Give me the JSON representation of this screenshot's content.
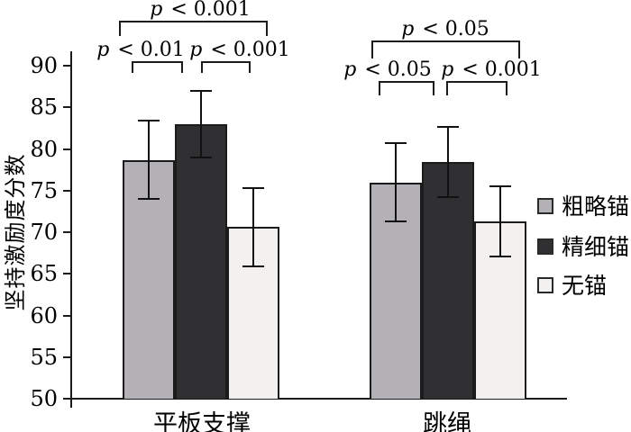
{
  "chart_data": {
    "type": "bar",
    "title": "",
    "xlabel": "",
    "ylabel": "坚持激励度分数",
    "ylim": [
      50,
      90
    ],
    "yticks": [
      50,
      55,
      60,
      65,
      70,
      75,
      80,
      85,
      90
    ],
    "grid": false,
    "legend_position": "right",
    "categories": [
      "平板支撑",
      "跳绳"
    ],
    "series": [
      {
        "name": "粗略锚",
        "color": "#b3b1b5",
        "values": [
          78.7,
          76.0
        ],
        "errors": [
          4.7,
          4.7
        ]
      },
      {
        "name": "精细锚",
        "color": "#302f31",
        "values": [
          83.0,
          78.4
        ],
        "errors": [
          4.0,
          4.2
        ]
      },
      {
        "name": "无锚",
        "color": "#f2f1f0",
        "values": [
          70.6,
          71.3
        ],
        "errors": [
          4.7,
          4.2
        ]
      }
    ],
    "significance": [
      {
        "category": "平板支撑",
        "comparisons": [
          {
            "position": "top",
            "between": [
              "粗略锚",
              "无锚"
            ],
            "label": "p < 0.001"
          },
          {
            "position": "left",
            "between": [
              "粗略锚",
              "精细锚"
            ],
            "label": "p < 0.01"
          },
          {
            "position": "right",
            "between": [
              "精细锚",
              "无锚"
            ],
            "label": "p < 0.001"
          }
        ]
      },
      {
        "category": "跳绳",
        "comparisons": [
          {
            "position": "top",
            "between": [
              "粗略锚",
              "无锚"
            ],
            "label": "p < 0.05"
          },
          {
            "position": "left",
            "between": [
              "粗略锚",
              "精细锚"
            ],
            "label": "p < 0.05"
          },
          {
            "position": "right",
            "between": [
              "精细锚",
              "无锚"
            ],
            "label": "p < 0.001"
          }
        ]
      }
    ]
  }
}
